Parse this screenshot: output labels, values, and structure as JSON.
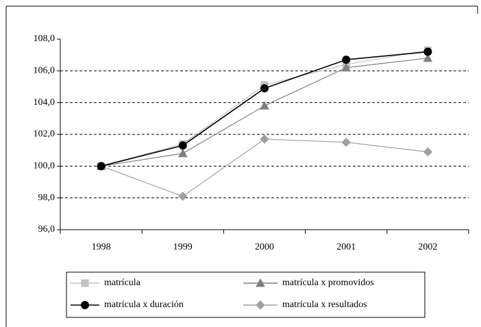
{
  "chart_data": {
    "type": "line",
    "categories": [
      "1998",
      "1999",
      "2000",
      "2001",
      "2002"
    ],
    "series": [
      {
        "name": "matrícula",
        "color": "#c0c0c0",
        "marker": "square",
        "values": [
          100,
          101.4,
          105.1,
          106.4,
          107.3
        ]
      },
      {
        "name": "matrícula x promovidos",
        "color": "#808080",
        "marker": "triangle",
        "values": [
          100,
          100.8,
          103.8,
          106.2,
          106.8
        ]
      },
      {
        "name": "matrícula x duración",
        "color": "#000000",
        "marker": "circle",
        "values": [
          100,
          101.3,
          104.9,
          106.7,
          107.2
        ]
      },
      {
        "name": "matrícula x resultados",
        "color": "#a0a0a0",
        "marker": "diamond",
        "values": [
          100,
          98.1,
          101.7,
          101.5,
          100.9
        ]
      }
    ],
    "ylim": [
      96,
      108
    ],
    "yticks": [
      {
        "value": 96,
        "label": "96,0"
      },
      {
        "value": 98,
        "label": "98,0"
      },
      {
        "value": 100,
        "label": "100,0"
      },
      {
        "value": 102,
        "label": "102,0"
      },
      {
        "value": 104,
        "label": "104,0"
      },
      {
        "value": 106,
        "label": "106,0"
      },
      {
        "value": 108,
        "label": "108,0"
      }
    ],
    "grid": true,
    "legend": "bottom"
  }
}
